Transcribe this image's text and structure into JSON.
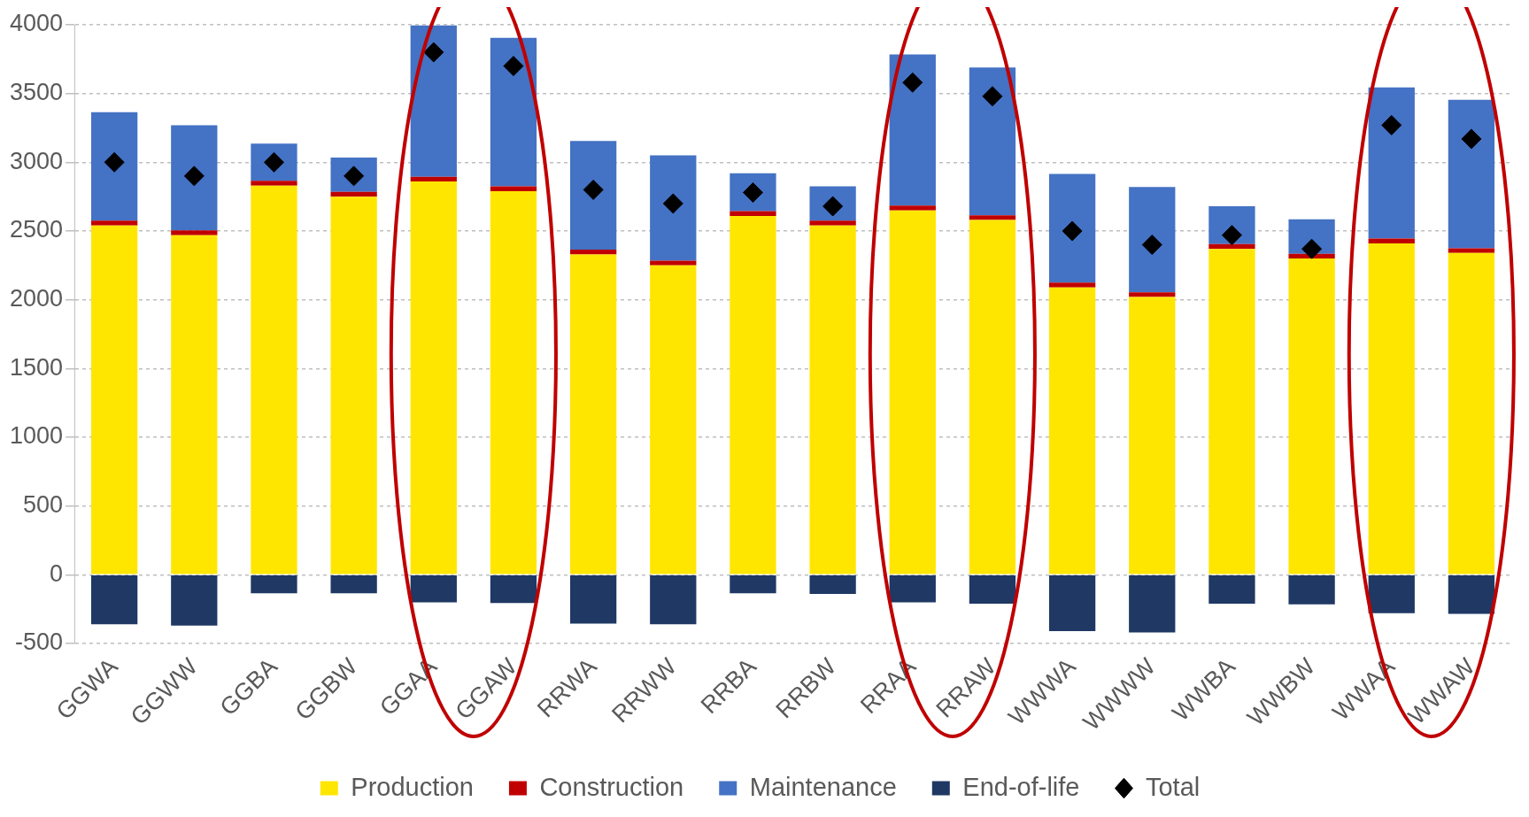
{
  "chart_data": {
    "type": "bar",
    "stacked": true,
    "categories": [
      "GGWA",
      "GGWW",
      "GGBA",
      "GGBW",
      "GGAA",
      "GGAW",
      "RRWA",
      "RRWW",
      "RRBA",
      "RRBW",
      "RRAA",
      "RRAW",
      "WWWA",
      "WWWW",
      "WWBA",
      "WWBW",
      "WWAA",
      "WWAW"
    ],
    "series": [
      {
        "name": "Production",
        "color": "#ffe600",
        "values": [
          2540,
          2470,
          2830,
          2750,
          2860,
          2790,
          2330,
          2250,
          2610,
          2540,
          2650,
          2580,
          2090,
          2020,
          2370,
          2300,
          2410,
          2340
        ]
      },
      {
        "name": "Construction",
        "color": "#c00000",
        "values": [
          35,
          35,
          35,
          35,
          35,
          35,
          35,
          35,
          35,
          35,
          35,
          35,
          35,
          35,
          35,
          35,
          35,
          35
        ]
      },
      {
        "name": "Maintenance",
        "color": "#4472c4",
        "values": [
          790,
          765,
          270,
          250,
          1100,
          1080,
          790,
          765,
          275,
          250,
          1100,
          1075,
          790,
          765,
          275,
          250,
          1100,
          1080
        ]
      },
      {
        "name": "End-of-life",
        "color": "#1f3864",
        "values": [
          -360,
          -370,
          -135,
          -135,
          -200,
          -205,
          -355,
          -360,
          -135,
          -140,
          -200,
          -210,
          -410,
          -420,
          -210,
          -215,
          -280,
          -285
        ]
      },
      {
        "name": "Total",
        "type": "scatter",
        "color": "#000000",
        "marker": "diamond",
        "x": [
          "GGWA",
          "GGWW",
          "GGBA",
          "GGBW",
          "GGAA",
          "GGAW",
          "RRWA",
          "RRWW",
          "RRBA",
          "RRBW",
          "RRAA",
          "RRAW",
          "WWWA",
          "WWWW",
          "WWBA",
          "WWBW",
          "WWAA",
          "WWAW"
        ],
        "values": [
          3000,
          2900,
          3000,
          2900,
          3800,
          3700,
          2800,
          2700,
          2780,
          2680,
          3580,
          3480,
          2500,
          2400,
          2470,
          2370,
          3270,
          3170
        ]
      }
    ],
    "ylim": [
      -500,
      4000
    ],
    "yticks": [
      -500,
      0,
      500,
      1000,
      1500,
      2000,
      2500,
      3000,
      3500,
      4000
    ],
    "grid": "y",
    "legend": "bottom"
  }
}
